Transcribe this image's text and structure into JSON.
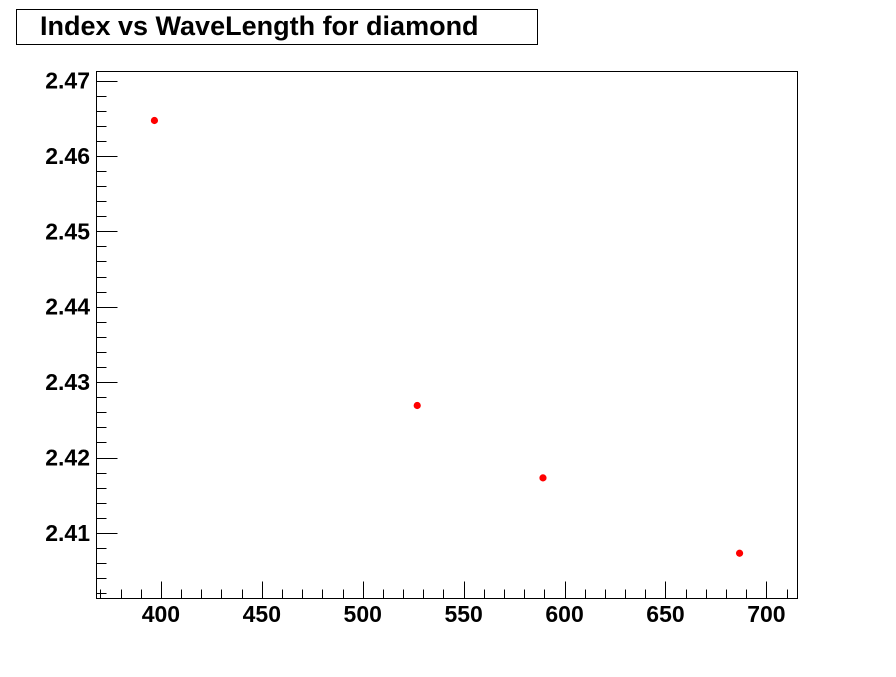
{
  "chart_data": {
    "type": "scatter",
    "title": "Index vs WaveLength for diamond",
    "xlabel": "",
    "ylabel": "",
    "xlim": [
      368.1,
      715.4
    ],
    "ylim": [
      2.4013,
      2.4712
    ],
    "x_ticks": [
      "400",
      "450",
      "500",
      "550",
      "600",
      "650",
      "700"
    ],
    "y_ticks": [
      "2.41",
      "2.42",
      "2.43",
      "2.44",
      "2.45",
      "2.46",
      "2.47"
    ],
    "grid": false,
    "marker_color": "#ff0000",
    "series": [
      {
        "x": [
          396.8,
          527.0,
          589.3,
          686.7
        ],
        "y": [
          2.4647,
          2.4269,
          2.4173,
          2.4073
        ]
      }
    ]
  }
}
